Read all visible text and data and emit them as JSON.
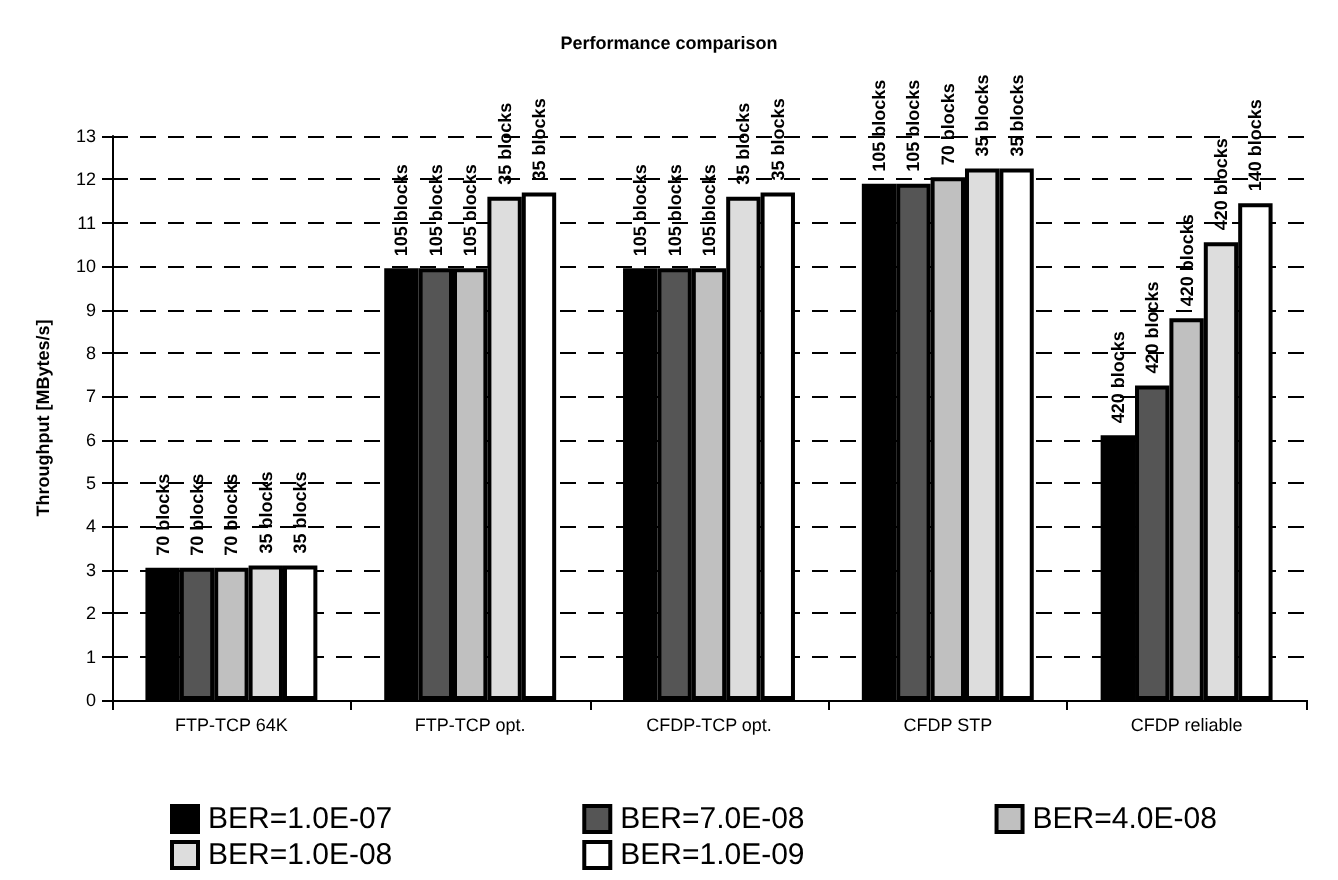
{
  "chart_data": {
    "type": "bar",
    "title": "Performance comparison",
    "ylabel": "Throughput [MBytes/s]",
    "categories": [
      "FTP-TCP 64K",
      "FTP-TCP opt.",
      "CFDP-TCP opt.",
      "CFDP STP",
      "CFDP reliable"
    ],
    "series": [
      {
        "name": "BER=1.0E-07",
        "color": "#000000",
        "values": [
          3.05,
          9.95,
          9.95,
          11.9,
          6.1
        ]
      },
      {
        "name": "BER=7.0E-08",
        "color": "#555555",
        "values": [
          3.05,
          9.95,
          9.95,
          11.9,
          7.25
        ]
      },
      {
        "name": "BER=4.0E-08",
        "color": "#c0c0c0",
        "values": [
          3.05,
          9.95,
          9.95,
          12.05,
          8.8
        ]
      },
      {
        "name": "BER=1.0E-08",
        "color": "#dddddd",
        "values": [
          3.1,
          11.6,
          11.6,
          12.25,
          10.55
        ]
      },
      {
        "name": "BER=1.0E-09",
        "color": "#ffffff",
        "values": [
          3.1,
          11.7,
          11.7,
          12.25,
          11.45
        ]
      }
    ],
    "annotations": [
      "70 blocks",
      "70 blocks",
      "70 blocks",
      "35 blocks",
      "35 blocks",
      "105 blocks",
      "105 blocks",
      "105 blocks",
      "35 blocks",
      "35 blocks",
      "105 blocks",
      "105 blocks",
      "105 blocks",
      "35 blocks",
      "35 blocks",
      "105 blocks",
      "105 blocks",
      "70 blocks",
      "35 blocks",
      "35 blocks",
      "420 blocks",
      "420 blocks",
      "420 blocks",
      "420 blocks",
      "140 blocks"
    ],
    "ylim": [
      0,
      13
    ],
    "yticks": [
      0,
      1,
      2,
      3,
      4,
      5,
      6,
      7,
      8,
      9,
      10,
      11,
      12,
      13
    ],
    "grid": "y",
    "legend": "bottom"
  }
}
